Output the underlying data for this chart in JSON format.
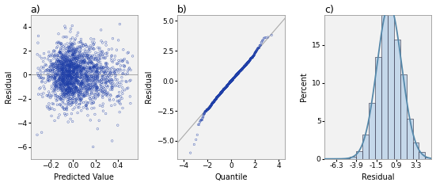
{
  "panel_a": {
    "label": "a)",
    "xlabel": "Predicted Value",
    "ylabel": "Residual",
    "xlim": [
      -0.38,
      0.58
    ],
    "ylim": [
      -7,
      5
    ],
    "yticks": [
      -6,
      -4,
      -2,
      0,
      2,
      4
    ],
    "xticks": [
      -0.2,
      0.0,
      0.2,
      0.4
    ],
    "point_color": "#1f3fa8",
    "markersize": 3.5,
    "n_points": 2000
  },
  "panel_b": {
    "label": "b)",
    "xlabel": "Quantile",
    "ylabel": "Residual",
    "xlim": [
      -4.5,
      4.5
    ],
    "ylim": [
      -6.5,
      5.5
    ],
    "yticks": [
      -5.0,
      -2.5,
      0.0,
      2.5,
      5.0
    ],
    "xticks": [
      -4,
      -2,
      0,
      2,
      4
    ],
    "point_color": "#1f3fa8",
    "line_color": "#aaaaaa",
    "markersize": 3.0,
    "n_points": 1500
  },
  "panel_c": {
    "label": "c)",
    "xlabel": "Residual",
    "ylabel": "Percent",
    "xlim": [
      -7.8,
      5.2
    ],
    "ylim": [
      0,
      19
    ],
    "yticks": [
      0,
      5,
      10,
      15
    ],
    "xticks": [
      -6.3,
      -3.9,
      -1.5,
      0.9,
      3.3
    ],
    "xtick_labels": [
      "-6.3",
      "-3.9",
      "-1.5",
      "0.9",
      "3.3"
    ],
    "bar_color": "#c5d8ea",
    "bar_edge_color": "#22223a",
    "curve_color": "#5588aa",
    "n_bins": 17
  },
  "plot_bg_color": "#f2f2f2",
  "font_size": 7,
  "label_fontsize": 9,
  "seed": 42
}
